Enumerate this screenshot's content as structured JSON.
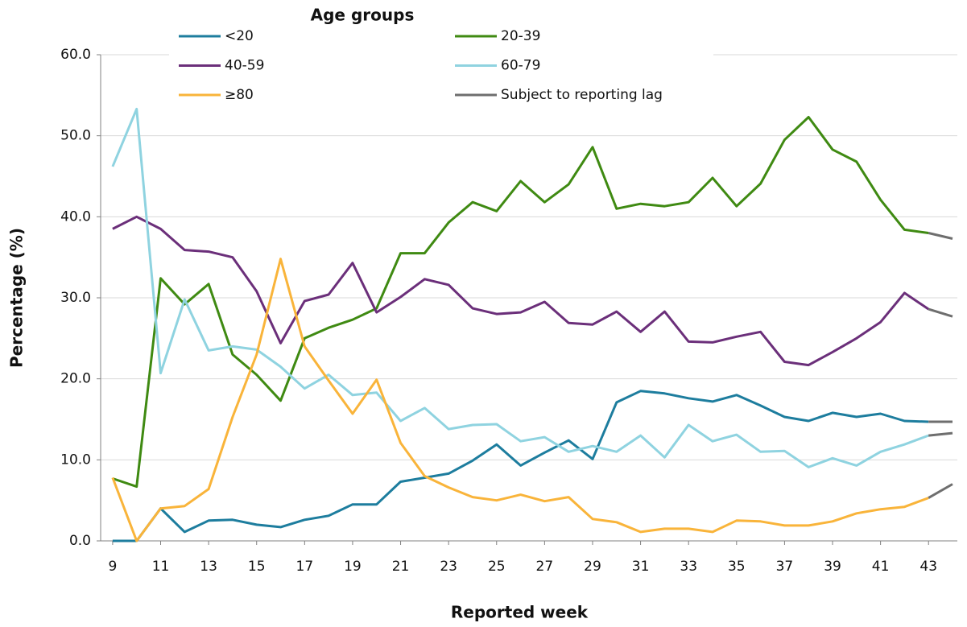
{
  "chart_data": {
    "type": "line",
    "legend_title": "Age groups",
    "xlabel": "Reported week",
    "ylabel": "Percentage (%)",
    "x": [
      9,
      10,
      11,
      12,
      13,
      14,
      15,
      16,
      17,
      18,
      19,
      20,
      21,
      22,
      23,
      24,
      25,
      26,
      27,
      28,
      29,
      30,
      31,
      32,
      33,
      34,
      35,
      36,
      37,
      38,
      39,
      40,
      41,
      42,
      43,
      44
    ],
    "xlim": [
      8.5,
      44.2
    ],
    "xticks": [
      9,
      11,
      13,
      15,
      17,
      19,
      21,
      23,
      25,
      27,
      29,
      31,
      33,
      35,
      37,
      39,
      41,
      43
    ],
    "ylim": [
      0,
      60
    ],
    "yticks": [
      {
        "value": 0,
        "label": "0.0"
      },
      {
        "value": 10,
        "label": "10.0"
      },
      {
        "value": 20,
        "label": "20.0"
      },
      {
        "value": 30,
        "label": "30.0"
      },
      {
        "value": 40,
        "label": "40.0"
      },
      {
        "value": 50,
        "label": "50.0"
      },
      {
        "value": 60,
        "label": "60.0"
      }
    ],
    "grid": true,
    "lag": {
      "name": "Subject to reporting lag",
      "color": "#6e6e6e",
      "from": 43
    },
    "series": [
      {
        "name": "<20",
        "color": "#1d7d9e",
        "values": [
          0,
          0,
          4.0,
          1.1,
          2.5,
          2.6,
          2.0,
          1.7,
          2.6,
          3.1,
          4.5,
          4.5,
          7.3,
          7.8,
          8.3,
          9.9,
          11.9,
          9.3,
          10.9,
          12.4,
          10.1,
          17.1,
          18.5,
          18.2,
          17.6,
          17.2,
          18.0,
          16.7,
          15.3,
          14.8,
          15.8,
          15.3,
          15.7,
          14.8,
          14.7,
          14.7
        ]
      },
      {
        "name": "20-39",
        "color": "#3f8a12",
        "values": [
          7.7,
          6.7,
          32.4,
          29.2,
          31.7,
          23.0,
          20.5,
          17.3,
          25.0,
          26.3,
          27.3,
          28.7,
          35.5,
          35.5,
          39.3,
          41.8,
          40.7,
          44.4,
          41.8,
          44.0,
          48.6,
          41.0,
          41.6,
          41.3,
          41.8,
          44.8,
          41.3,
          44.1,
          49.5,
          52.3,
          48.3,
          46.8,
          42.1,
          38.4,
          38.0,
          37.3
        ]
      },
      {
        "name": "40-59",
        "color": "#6b2f7a",
        "values": [
          38.5,
          40.0,
          38.5,
          35.9,
          35.7,
          35.0,
          30.8,
          24.4,
          29.6,
          30.4,
          34.3,
          28.2,
          30.1,
          32.3,
          31.6,
          28.7,
          28.0,
          28.2,
          29.5,
          26.9,
          26.7,
          28.3,
          25.8,
          28.3,
          24.6,
          24.5,
          25.2,
          25.8,
          22.1,
          21.7,
          23.3,
          25.0,
          27.0,
          30.6,
          28.6,
          27.7
        ]
      },
      {
        "name": "60-79",
        "color": "#8fd3e0",
        "values": [
          46.2,
          53.3,
          20.7,
          29.8,
          23.5,
          24.0,
          23.6,
          21.5,
          18.8,
          20.5,
          18.0,
          18.3,
          14.8,
          16.4,
          13.8,
          14.3,
          14.4,
          12.3,
          12.8,
          11.0,
          11.7,
          11.0,
          13.0,
          10.3,
          14.3,
          12.3,
          13.1,
          11.0,
          11.1,
          9.1,
          10.2,
          9.3,
          11.0,
          11.9,
          13.0,
          13.3
        ]
      },
      {
        "name": "≥80",
        "color": "#f9b43a",
        "values": [
          7.8,
          0,
          4.0,
          4.3,
          6.4,
          15.3,
          23.0,
          34.8,
          24.0,
          19.8,
          15.7,
          19.9,
          12.1,
          8.0,
          6.6,
          5.4,
          5.0,
          5.7,
          4.9,
          5.4,
          2.7,
          2.3,
          1.1,
          1.5,
          1.5,
          1.1,
          2.5,
          2.4,
          1.9,
          1.9,
          2.4,
          3.4,
          3.9,
          4.2,
          5.3,
          7.0
        ]
      }
    ]
  }
}
